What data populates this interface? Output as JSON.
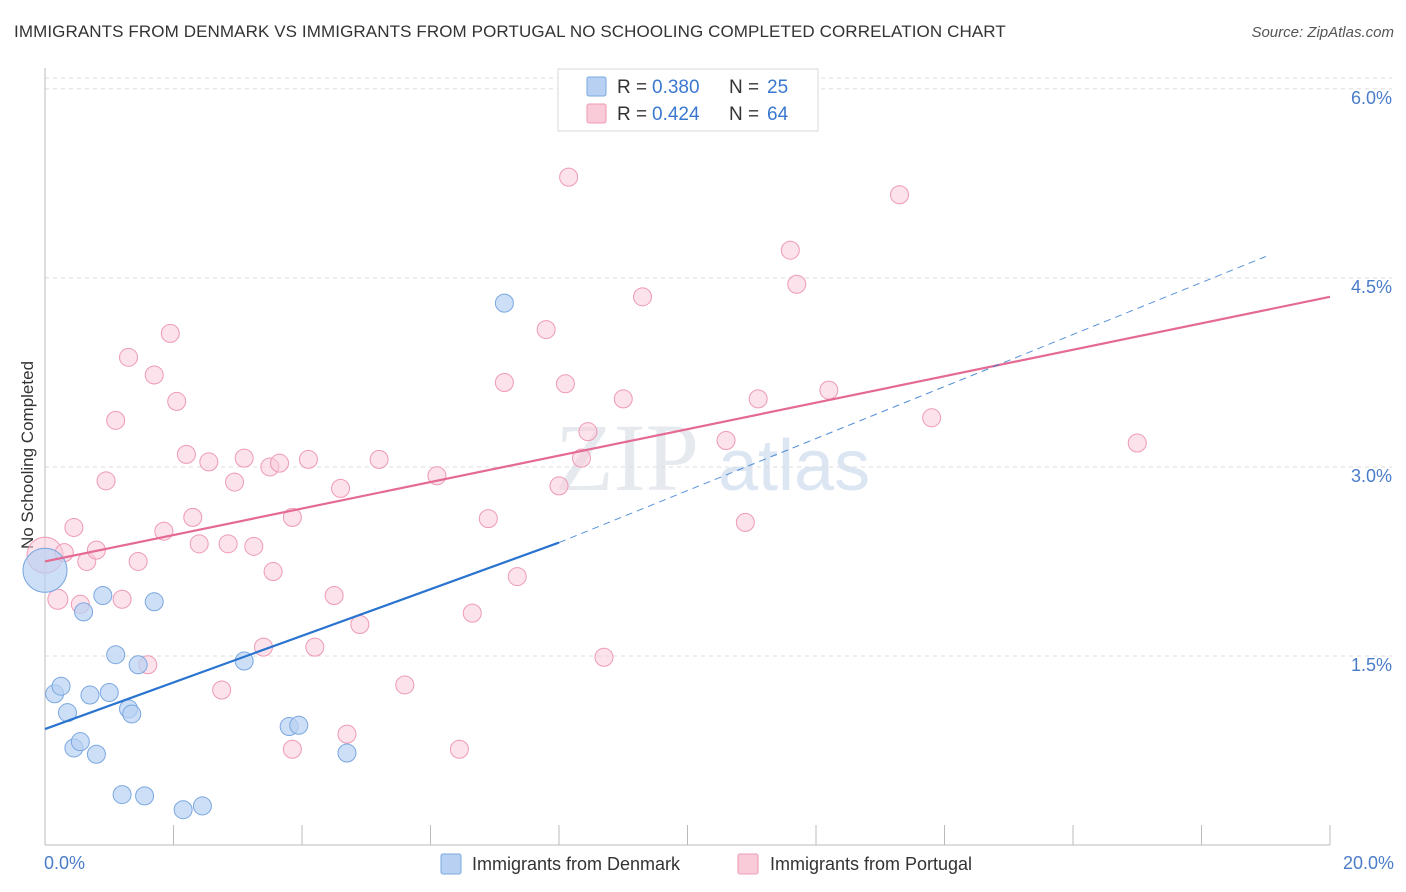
{
  "header": {
    "title": "IMMIGRANTS FROM DENMARK VS IMMIGRANTS FROM PORTUGAL NO SCHOOLING COMPLETED CORRELATION CHART",
    "source": "Source: ZipAtlas.com"
  },
  "legend": {
    "denmark": {
      "r_label": "R =",
      "r_value": "0.380",
      "n_label": "N =",
      "n_value": "25"
    },
    "portugal": {
      "r_label": "R =",
      "r_value": "0.424",
      "n_label": "N =",
      "n_value": "64"
    }
  },
  "bottom_legend": {
    "denmark": "Immigrants from Denmark",
    "portugal": "Immigrants from Portugal"
  },
  "watermark": {
    "zip": "ZIP",
    "atlas": "atlas"
  },
  "colors": {
    "denmark_fill": "#b8d1f2",
    "denmark_stroke": "#7aa7e0",
    "denmark_line": "#2a74d0",
    "portugal_fill": "#f9cad8",
    "portugal_stroke": "#ee9ab5",
    "portugal_line": "#e46a93",
    "tick_text": "#4a7cc9"
  },
  "chart_data": {
    "type": "scatter",
    "title": "IMMIGRANTS FROM DENMARK VS IMMIGRANTS FROM PORTUGAL NO SCHOOLING COMPLETED CORRELATION CHART",
    "xlabel": "",
    "ylabel": "No Schooling Completed",
    "xlim": [
      0,
      20
    ],
    "ylim": [
      0,
      6.15
    ],
    "x_tick_labels": {
      "min": "0.0%",
      "max": "20.0%"
    },
    "y_ticks": [
      {
        "value": 1.5,
        "label": "1.5%"
      },
      {
        "value": 3.0,
        "label": "3.0%"
      },
      {
        "value": 4.5,
        "label": "4.5%"
      },
      {
        "value": 6.0,
        "label": "6.0%"
      }
    ],
    "series": [
      {
        "name": "Immigrants from Denmark",
        "r": 0.38,
        "n": 25,
        "trend": {
          "x0": 0,
          "y0": 0.92,
          "x1": 8.0,
          "y1": 2.4,
          "dash_to_x": 19.0,
          "dash_to_y": 4.67
        },
        "points": [
          [
            0.0,
            2.18,
            22
          ],
          [
            0.15,
            1.2,
            9
          ],
          [
            0.25,
            1.26,
            9
          ],
          [
            0.35,
            1.05,
            9
          ],
          [
            0.45,
            0.77,
            9
          ],
          [
            0.55,
            0.82,
            9
          ],
          [
            0.6,
            1.85,
            9
          ],
          [
            0.7,
            1.19,
            9
          ],
          [
            0.8,
            0.72,
            9
          ],
          [
            0.9,
            1.98,
            9
          ],
          [
            1.0,
            1.21,
            9
          ],
          [
            1.1,
            1.51,
            9
          ],
          [
            1.2,
            0.4,
            9
          ],
          [
            1.3,
            1.08,
            9
          ],
          [
            1.35,
            1.04,
            9
          ],
          [
            1.45,
            1.43,
            9
          ],
          [
            1.55,
            0.39,
            9
          ],
          [
            1.7,
            1.93,
            9
          ],
          [
            2.15,
            0.28,
            9
          ],
          [
            2.45,
            0.31,
            9
          ],
          [
            3.1,
            1.46,
            9
          ],
          [
            3.8,
            0.94,
            9
          ],
          [
            3.95,
            0.95,
            9
          ],
          [
            4.7,
            0.73,
            9
          ],
          [
            7.15,
            4.3,
            9
          ]
        ]
      },
      {
        "name": "Immigrants from Portugal",
        "r": 0.424,
        "n": 64,
        "trend": {
          "x0": 0,
          "y0": 2.25,
          "x1": 20.0,
          "y1": 4.35
        },
        "points": [
          [
            0.0,
            2.3,
            18
          ],
          [
            0.2,
            1.95,
            10
          ],
          [
            0.3,
            2.32,
            9
          ],
          [
            0.45,
            2.52,
            9
          ],
          [
            0.55,
            1.91,
            9
          ],
          [
            0.65,
            2.25,
            9
          ],
          [
            0.8,
            2.34,
            9
          ],
          [
            0.95,
            2.89,
            9
          ],
          [
            1.1,
            3.37,
            9
          ],
          [
            1.2,
            1.95,
            9
          ],
          [
            1.3,
            3.87,
            9
          ],
          [
            1.45,
            2.25,
            9
          ],
          [
            1.6,
            1.43,
            9
          ],
          [
            1.7,
            3.73,
            9
          ],
          [
            1.85,
            2.49,
            9
          ],
          [
            1.95,
            4.06,
            9
          ],
          [
            2.05,
            3.52,
            9
          ],
          [
            2.2,
            3.1,
            9
          ],
          [
            2.3,
            2.6,
            9
          ],
          [
            2.4,
            2.39,
            9
          ],
          [
            2.55,
            3.04,
            9
          ],
          [
            2.75,
            1.23,
            9
          ],
          [
            2.85,
            2.39,
            9
          ],
          [
            2.95,
            2.88,
            9
          ],
          [
            3.1,
            3.07,
            9
          ],
          [
            3.25,
            2.37,
            9
          ],
          [
            3.4,
            1.57,
            9
          ],
          [
            3.5,
            3.0,
            9
          ],
          [
            3.55,
            2.17,
            9
          ],
          [
            3.65,
            3.03,
            9
          ],
          [
            3.85,
            0.76,
            9
          ],
          [
            3.85,
            2.6,
            9
          ],
          [
            4.1,
            3.06,
            9
          ],
          [
            4.2,
            1.57,
            9
          ],
          [
            4.5,
            1.98,
            9
          ],
          [
            4.6,
            2.83,
            9
          ],
          [
            4.7,
            0.88,
            9
          ],
          [
            4.9,
            1.75,
            9
          ],
          [
            5.2,
            3.06,
            9
          ],
          [
            5.6,
            1.27,
            9
          ],
          [
            6.1,
            2.93,
            9
          ],
          [
            6.45,
            0.76,
            9
          ],
          [
            6.65,
            1.84,
            9
          ],
          [
            6.9,
            2.59,
            9
          ],
          [
            7.15,
            3.67,
            9
          ],
          [
            7.35,
            2.13,
            9
          ],
          [
            7.8,
            4.09,
            9
          ],
          [
            8.0,
            2.85,
            9
          ],
          [
            8.1,
            3.66,
            9
          ],
          [
            8.15,
            5.3,
            9
          ],
          [
            8.35,
            3.07,
            9
          ],
          [
            8.45,
            3.28,
            9
          ],
          [
            8.7,
            1.49,
            9
          ],
          [
            9.0,
            3.54,
            9
          ],
          [
            9.3,
            4.35,
            9
          ],
          [
            10.6,
            3.21,
            9
          ],
          [
            10.9,
            2.56,
            9
          ],
          [
            11.1,
            3.54,
            9
          ],
          [
            11.6,
            4.72,
            9
          ],
          [
            11.7,
            4.45,
            9
          ],
          [
            12.2,
            3.61,
            9
          ],
          [
            13.3,
            5.16,
            9
          ],
          [
            13.8,
            3.39,
            9
          ],
          [
            17.0,
            3.19,
            9
          ]
        ]
      }
    ]
  }
}
